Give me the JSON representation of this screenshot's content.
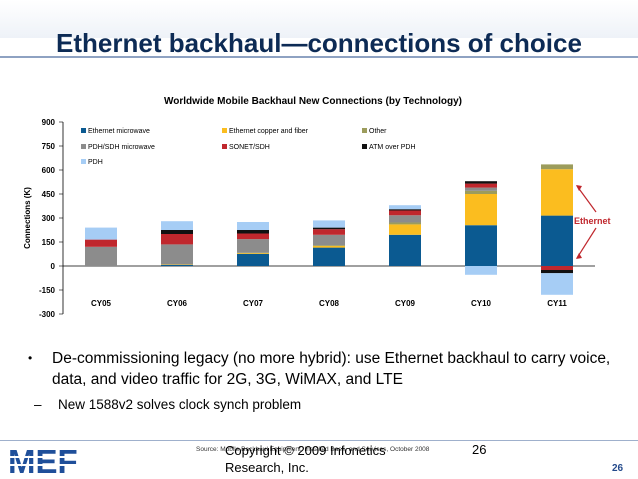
{
  "slide": {
    "title": "Ethernet backhaul—connections of choice",
    "bullet": "De-commissioning legacy (no more hybrid): use Ethernet backhaul to carry voice, data, and video traffic for 2G, 3G, WiMAX, and LTE",
    "sub_bullet": "New 1588v2 solves clock synch problem",
    "source": "Source: Mobile Backhaul Equipment, Installed Base, and Services, October 2008",
    "copyright": "Copyright © 2009 Infonetics Research, Inc.",
    "page_number": "26",
    "footer_page": "26",
    "logo_text": "MEF",
    "bullet_marker": "•",
    "sub_marker": "–"
  },
  "chart_data": {
    "type": "bar",
    "stacked": true,
    "title": "Worldwide Mobile Backhaul New Connections (by Technology)",
    "ylabel": "Connections (K)",
    "xlabel": "",
    "ylim": [
      -300,
      900
    ],
    "yticks": [
      "900",
      "750",
      "600",
      "450",
      "300",
      "150",
      "0",
      "-150",
      "-300"
    ],
    "categories": [
      "CY05",
      "CY06",
      "CY07",
      "CY08",
      "CY09",
      "CY10",
      "CY11"
    ],
    "legend_position": "top-left",
    "series": [
      {
        "name": "Ethernet microwave",
        "color": "#0b5a91",
        "values": [
          0,
          8,
          75,
          115,
          195,
          255,
          315
        ]
      },
      {
        "name": "Ethernet copper and fiber",
        "color": "#fbbd1f",
        "values": [
          0,
          2,
          5,
          10,
          65,
          195,
          290
        ]
      },
      {
        "name": "Other",
        "color": "#9c9c5c",
        "values": [
          0,
          0,
          3,
          5,
          12,
          20,
          30
        ]
      },
      {
        "name": "PDH/SDH microwave",
        "color": "#8c8c8c",
        "values": [
          120,
          125,
          85,
          65,
          45,
          20,
          0
        ]
      },
      {
        "name": "SONET/SDH",
        "color": "#c0272d",
        "values": [
          45,
          65,
          35,
          35,
          30,
          25,
          -25
        ]
      },
      {
        "name": "ATM over PDH",
        "color": "#111111",
        "values": [
          0,
          25,
          22,
          10,
          8,
          15,
          -20
        ]
      },
      {
        "name": "PDH",
        "color": "#a6cdf5",
        "values": [
          75,
          55,
          50,
          45,
          25,
          -55,
          -135
        ]
      }
    ],
    "annotation": "Ethernet",
    "annotation_color": "#c0272d"
  }
}
